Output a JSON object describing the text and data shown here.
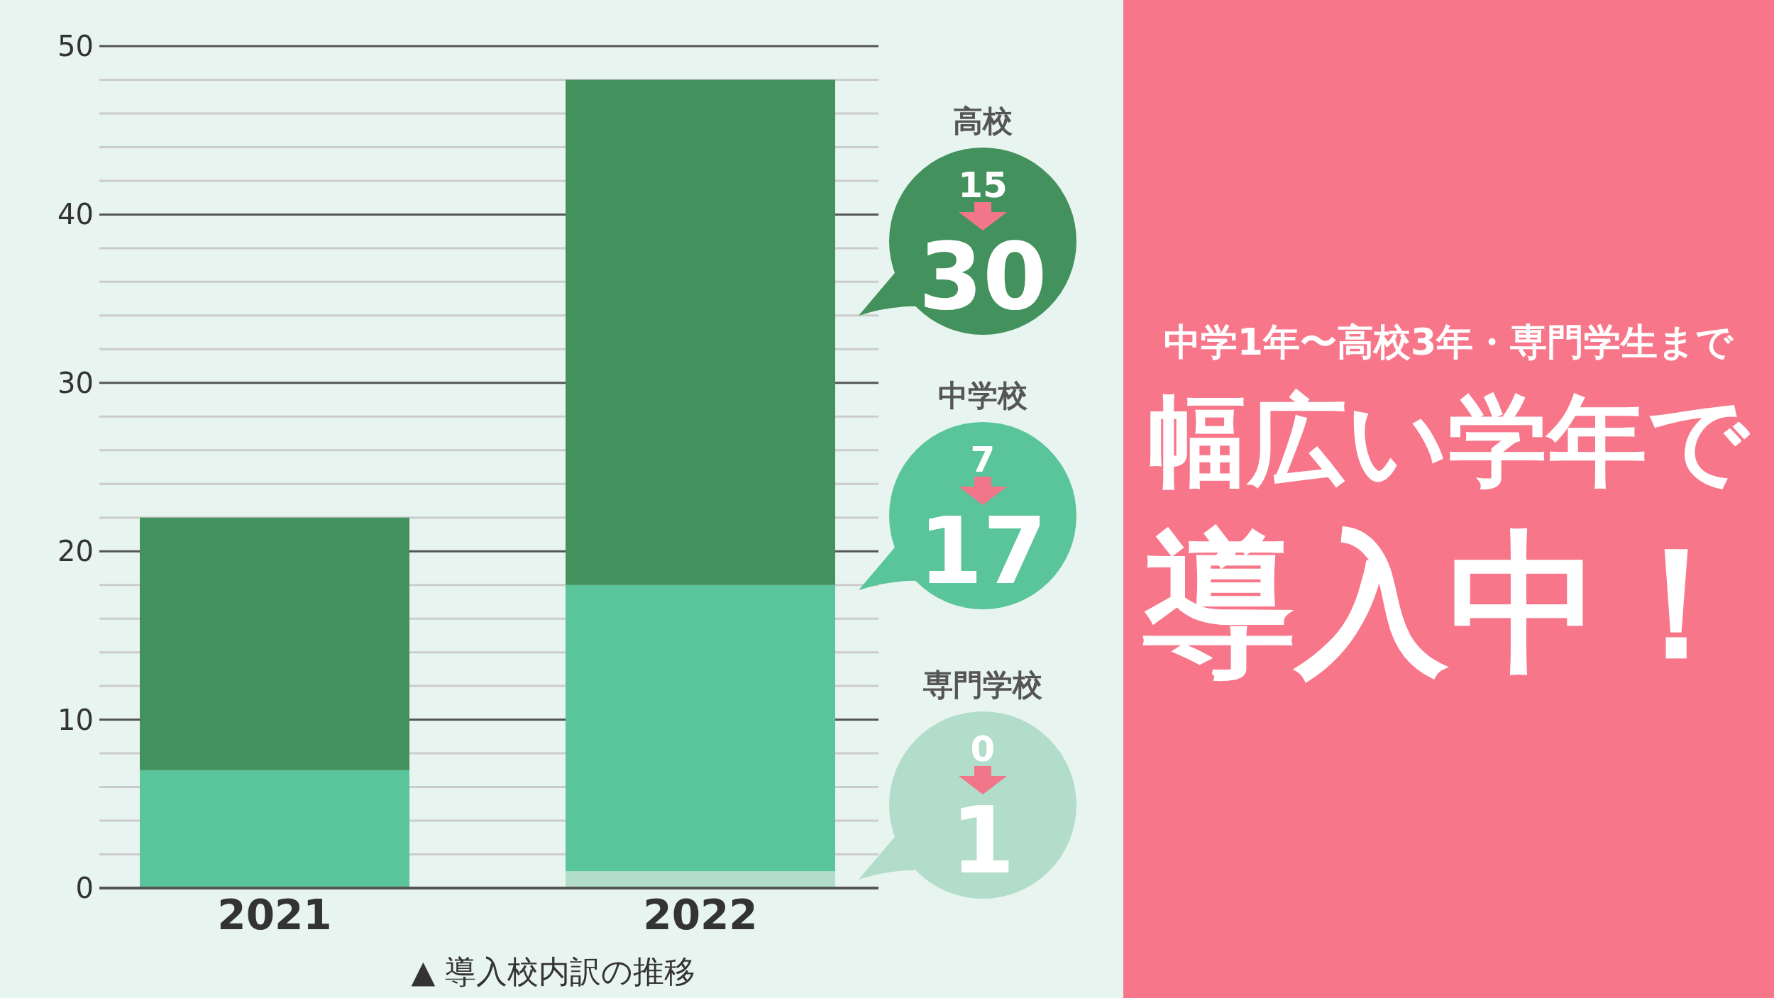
{
  "chart_data": {
    "type": "bar",
    "stacked": true,
    "categories": [
      "2021",
      "2022"
    ],
    "series": [
      {
        "name": "専門学校",
        "color": "#b2ddca",
        "values": [
          0,
          1
        ]
      },
      {
        "name": "中学校",
        "color": "#5ac49a",
        "values": [
          7,
          17
        ]
      },
      {
        "name": "高校",
        "color": "#43915c",
        "values": [
          15,
          30
        ]
      }
    ],
    "ylim": [
      0,
      50
    ],
    "yticks": [
      0,
      {
        "value": 2,
        "label": null
      },
      {
        "value": 4,
        "label": null
      },
      {
        "value": 6,
        "label": null
      },
      {
        "value": 8,
        "label": null
      },
      10,
      {
        "value": 12,
        "label": null
      },
      {
        "value": 14,
        "label": null
      },
      {
        "value": 16,
        "label": null
      },
      {
        "value": 18,
        "label": null
      },
      20,
      {
        "value": 22,
        "label": null
      },
      {
        "value": 24,
        "label": null
      },
      {
        "value": 26,
        "label": null
      },
      {
        "value": 28,
        "label": null
      },
      30,
      {
        "value": 32,
        "label": null
      },
      {
        "value": 34,
        "label": null
      },
      {
        "value": 36,
        "label": null
      },
      {
        "value": 38,
        "label": null
      },
      40,
      {
        "value": 42,
        "label": null
      },
      {
        "value": 44,
        "label": null
      },
      {
        "value": 46,
        "label": null
      },
      {
        "value": 48,
        "label": null
      },
      50
    ],
    "grid": "y",
    "xlabel": "▲ 導入校内訳の推移",
    "annotations": [
      "中学1年〜高校3年・専門学生まで",
      "幅広い学年で",
      "導入中！",
      "0",
      "1",
      "7",
      "17",
      "15",
      "30"
    ]
  }
}
